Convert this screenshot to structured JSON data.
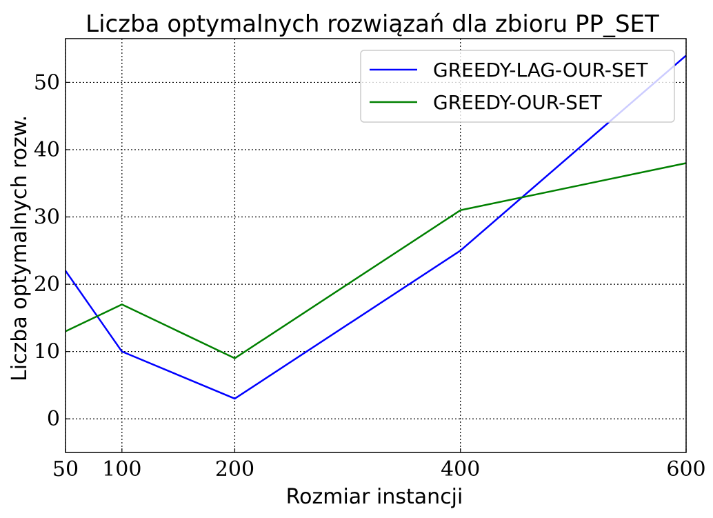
{
  "chart_data": {
    "type": "line",
    "title": "Liczba optymalnych rozwiązań dla zbioru PP_SET",
    "xlabel": "Rozmiar instancji",
    "ylabel": "Liczba optymalnych rozw.",
    "x": [
      50,
      100,
      200,
      400,
      600
    ],
    "xticks": [
      "50",
      "100",
      "200",
      "400",
      "600"
    ],
    "yticks": [
      "0",
      "10",
      "20",
      "30",
      "40",
      "50"
    ],
    "xlim": [
      50,
      600
    ],
    "ylim": [
      -5,
      56.5
    ],
    "grid": true,
    "legend_position": "top-right",
    "series": [
      {
        "name": "GREEDY-LAG-OUR-SET",
        "color": "#0000ff",
        "values": [
          22,
          10,
          3,
          25,
          54
        ]
      },
      {
        "name": "GREEDY-OUR-SET",
        "color": "#008000",
        "values": [
          13,
          17,
          9,
          31,
          38
        ]
      }
    ]
  }
}
